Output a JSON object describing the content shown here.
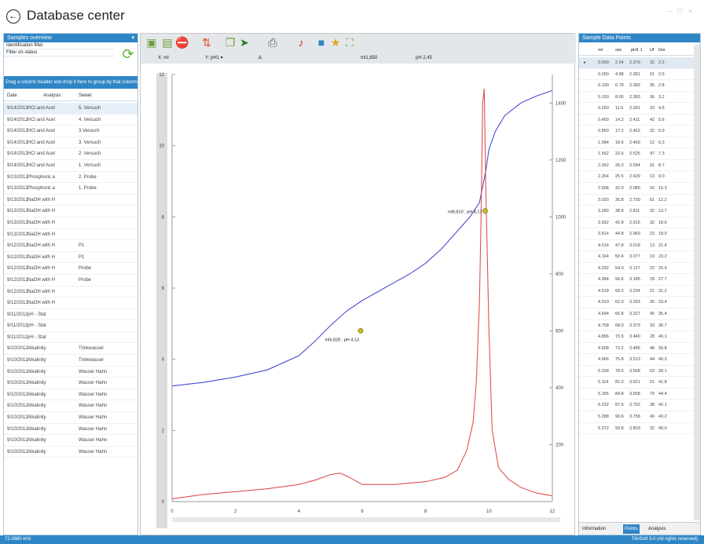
{
  "window": {
    "title": "Database center"
  },
  "left": {
    "header": "Samples overview",
    "filter1": "Identification filter",
    "filter2": "Filter on status",
    "group_hint": "Drag a column header and drop it here to group by that column",
    "columns": [
      "Date",
      "Analysis",
      "Sweet"
    ],
    "rows": [
      [
        "9/14/2012",
        "HCl and Acet",
        "5. Versuch"
      ],
      [
        "9/14/2012",
        "HCl and Acet",
        "4. Versuch"
      ],
      [
        "9/14/2012",
        "HCl and Acet",
        "3.Versuch"
      ],
      [
        "9/14/2012",
        "HCl and Acet",
        "3. Versuch"
      ],
      [
        "9/14/2012",
        "HCl and Acet",
        "2. Versuch"
      ],
      [
        "9/14/2012",
        "HCl and Acet",
        "1. Versuch"
      ],
      [
        "9/13/2012",
        "Phosphoric a",
        "2. Probe"
      ],
      [
        "9/13/2012",
        "Phosphoric a",
        "1. Probe"
      ],
      [
        "9/13/2012",
        "NaOH with H",
        ""
      ],
      [
        "9/13/2012",
        "NaOH with H",
        ""
      ],
      [
        "9/13/2012",
        "NaOH with H",
        ""
      ],
      [
        "9/13/2012",
        "NaOH with H",
        ""
      ],
      [
        "9/12/2012",
        "NaOH with H",
        "P1"
      ],
      [
        "9/12/2012",
        "NaOH with H",
        "P1"
      ],
      [
        "9/12/2012",
        "NaOH with H",
        "Probe"
      ],
      [
        "9/12/2012",
        "NaOH with H",
        "Probe"
      ],
      [
        "9/12/2012",
        "NaOH with H",
        ""
      ],
      [
        "9/12/2012",
        "NaOH with H",
        ""
      ],
      [
        "9/11/2012",
        "pH - Stat",
        ""
      ],
      [
        "9/11/2012",
        "pH - Stat",
        ""
      ],
      [
        "9/11/2012",
        "pH - Stat",
        ""
      ],
      [
        "9/10/2012",
        "Alkalinity",
        "Trinkwasser"
      ],
      [
        "9/10/2012",
        "Alkalinity",
        "Trinkwasser"
      ],
      [
        "9/10/2012",
        "Alkalinity",
        "Wasser Hahn"
      ],
      [
        "9/10/2012",
        "Alkalinity",
        "Wasser Hahn"
      ],
      [
        "9/10/2012",
        "Alkalinity",
        "Wasser Hahn"
      ],
      [
        "9/10/2012",
        "Alkalinity",
        "Wasser Hahn"
      ],
      [
        "9/10/2012",
        "Alkalinity",
        "Wasser Hahn"
      ],
      [
        "9/10/2012",
        "Alkalinity",
        "Wasser Hahn"
      ],
      [
        "9/10/2012",
        "Alkalinity",
        "Wasser Hahn"
      ],
      [
        "9/10/2012",
        "Alkalinity",
        "Wasser Hahn"
      ]
    ]
  },
  "axes_bar": {
    "x_label": "X: ml",
    "y1_label": "Y: pH1 ▾",
    "y2_label": "Δ",
    "readout_ml": "ml1,650",
    "readout_ph": "pH 2,45"
  },
  "toolbar_icons": [
    "open-icon",
    "table-icon",
    "stop-icon",
    "curve-icon",
    "copy-icon",
    "arrow-icon",
    "print-icon",
    "music-icon",
    "grid-icon",
    "star-icon",
    "expand-icon"
  ],
  "chart_data": {
    "type": "line",
    "x_ticks": [
      "0",
      "2",
      "4",
      "6",
      "8",
      "10",
      "12"
    ],
    "y_left_ticks": [
      "0",
      "2",
      "4",
      "6",
      "8",
      "10",
      "12"
    ],
    "y_right_ticks": [
      "200",
      "400",
      "600",
      "800",
      "1000",
      "1200",
      "1400"
    ],
    "xlim": [
      0,
      12
    ],
    "ylim_left": [
      0,
      12
    ],
    "ylim_right": [
      0,
      1500
    ],
    "series": [
      {
        "color": "#4a4ad8",
        "axis": "left",
        "x": [
          0,
          1,
          2,
          3,
          4,
          4.5,
          5,
          5.5,
          6,
          6.5,
          7,
          7.5,
          8,
          8.5,
          9,
          9.4,
          9.7,
          9.9,
          10,
          10.2,
          10.5,
          11,
          11.5,
          12
        ],
        "y": [
          3.25,
          3.35,
          3.5,
          3.7,
          4.1,
          4.5,
          4.95,
          5.35,
          5.65,
          5.9,
          6.15,
          6.4,
          6.7,
          7.1,
          7.6,
          8.0,
          8.4,
          9.3,
          9.9,
          10.4,
          10.85,
          11.2,
          11.4,
          11.55
        ]
      },
      {
        "color": "#e05050",
        "axis": "right",
        "x": [
          0,
          1,
          2,
          3,
          4,
          4.5,
          5,
          5.3,
          5.6,
          6,
          7,
          8,
          8.6,
          9,
          9.3,
          9.5,
          9.6,
          9.7,
          9.75,
          9.8,
          9.85,
          9.9,
          10,
          10.1,
          10.3,
          10.6,
          11,
          11.5,
          12
        ],
        "y": [
          10,
          25,
          35,
          45,
          60,
          75,
          95,
          100,
          85,
          60,
          60,
          70,
          85,
          110,
          180,
          280,
          420,
          700,
          1000,
          1400,
          1450,
          1100,
          600,
          250,
          120,
          80,
          50,
          30,
          20
        ]
      }
    ],
    "annotations": [
      {
        "x": 5.95,
        "y": 4.8,
        "text": "ml5,828 ; pH 4,13"
      },
      {
        "x": 9.88,
        "y": 8.17,
        "text": "ml9,810 ; pH 8,17"
      }
    ]
  },
  "right": {
    "header": "Sample Data Points",
    "columns": [
      "ml",
      "sec",
      "pH1 1",
      "Uf",
      "Der"
    ],
    "rows": [
      [
        "0.000",
        "2.24",
        "2.379",
        "32",
        "2.2"
      ],
      [
        "0.050",
        "4.98",
        "2.381",
        "01",
        "2.5"
      ],
      [
        "0.100",
        "6.78",
        "2.383",
        "35",
        "2.8"
      ],
      [
        "0.150",
        "8.00",
        "2.383",
        "36",
        "3.2"
      ],
      [
        "0.250",
        "11.6",
        "2.391",
        "33",
        "4.6"
      ],
      [
        "0.450",
        "14.2",
        "2.411",
        "42",
        "5.6"
      ],
      [
        "0.850",
        "17.2",
        "2.452",
        "32",
        "5.9"
      ],
      [
        "1.084",
        "18.6",
        "2.469",
        "12",
        "6.3"
      ],
      [
        "1.552",
        "22.6",
        "2.525",
        "47",
        "7.3"
      ],
      [
        "2.052",
        "26.0",
        "2.594",
        "01",
        "8.7"
      ],
      [
        "2.264",
        "25.5",
        "2.629",
        "13",
        "9.0"
      ],
      [
        "2.908",
        "32.0",
        "2.080",
        "16",
        "10.3"
      ],
      [
        "3.020",
        "35.8",
        "2.730",
        "61",
        "12.2"
      ],
      [
        "3.280",
        "38.8",
        "2.811",
        "32",
        "13.7"
      ],
      [
        "3.592",
        "42.8",
        "2.915",
        "32",
        "18.6"
      ],
      [
        "3.814",
        "44.8",
        "2.960",
        "23",
        "18.9"
      ],
      [
        "4.014",
        "47.8",
        "3.018",
        "13",
        "21.4"
      ],
      [
        "4.164",
        "50.4",
        "3.077",
        "19",
        "23.2"
      ],
      [
        "4.292",
        "54.0",
        "3.127",
        "22",
        "25.9"
      ],
      [
        "4.384",
        "56.6",
        "3.185",
        "29",
        "27.7"
      ],
      [
        "4.518",
        "60.2",
        "3.234",
        "21",
        "31.2"
      ],
      [
        "4.620",
        "62.0",
        "3.293",
        "26",
        "33.4"
      ],
      [
        "4.694",
        "66.8",
        "3.327",
        "40",
        "35.4"
      ],
      [
        "4.758",
        "68.0",
        "3.373",
        "33",
        "36.7"
      ],
      [
        "4.856",
        "70.5",
        "3.440",
        "28",
        "40.1"
      ],
      [
        "4.908",
        "73.2",
        "3.485",
        "48",
        "39.8"
      ],
      [
        "4.966",
        "75.8",
        "3.513",
        "44",
        "40.3"
      ],
      [
        "5.028",
        "78.6",
        "3.558",
        "63",
        "39.1"
      ],
      [
        "5.114",
        "81.0",
        "3.621",
        "51",
        "41.8"
      ],
      [
        "5.166",
        "84.8",
        "3.658",
        "79",
        "44.4"
      ],
      [
        "5.232",
        "87.6",
        "3.702",
        "38",
        "42.1"
      ],
      [
        "5.288",
        "90.6",
        "3.758",
        "49",
        "43.2"
      ],
      [
        "5.372",
        "93.8",
        "3.803",
        "32",
        "40.0"
      ]
    ],
    "tabs": [
      "Information",
      "Points",
      "Analysis"
    ]
  },
  "status": {
    "left": "72.0880 kHz",
    "right": "TitriSoft 3.0 (All rights reserved)"
  }
}
